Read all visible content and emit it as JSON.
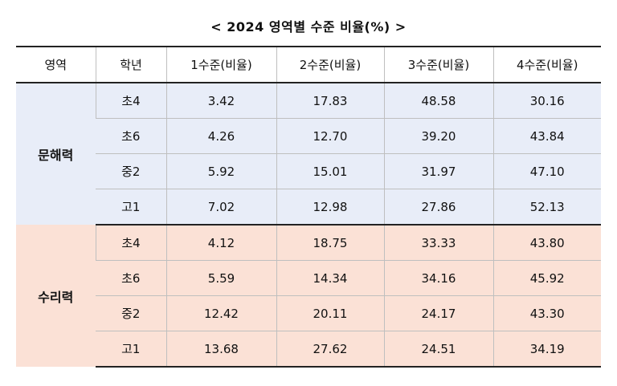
{
  "title": "< 2024 영역별 수준 비율(%) >",
  "table": {
    "headers": [
      "영역",
      "학년",
      "1수준(비율)",
      "2수준(비율)",
      "3수준(비율)",
      "4수준(비율)"
    ],
    "sections": [
      {
        "area": "문해력",
        "rows": [
          {
            "grade": "초4",
            "values": [
              "3.42",
              "17.83",
              "48.58",
              "30.16"
            ]
          },
          {
            "grade": "초6",
            "values": [
              "4.26",
              "12.70",
              "39.20",
              "43.84"
            ]
          },
          {
            "grade": "중2",
            "values": [
              "5.92",
              "15.01",
              "31.97",
              "47.10"
            ]
          },
          {
            "grade": "고1",
            "values": [
              "7.02",
              "12.98",
              "27.86",
              "52.13"
            ]
          }
        ]
      },
      {
        "area": "수리력",
        "rows": [
          {
            "grade": "초4",
            "values": [
              "4.12",
              "18.75",
              "33.33",
              "43.80"
            ]
          },
          {
            "grade": "초6",
            "values": [
              "5.59",
              "14.34",
              "34.16",
              "45.92"
            ]
          },
          {
            "grade": "중2",
            "values": [
              "12.42",
              "20.11",
              "24.17",
              "43.30"
            ]
          },
          {
            "grade": "고1",
            "values": [
              "13.68",
              "27.62",
              "24.51",
              "34.19"
            ]
          }
        ]
      }
    ]
  },
  "colors": {
    "literacy_bg": "#e8edf8",
    "numeracy_bg": "#fbe1d6",
    "rule": "#222222",
    "grid": "#bfbfbf"
  }
}
